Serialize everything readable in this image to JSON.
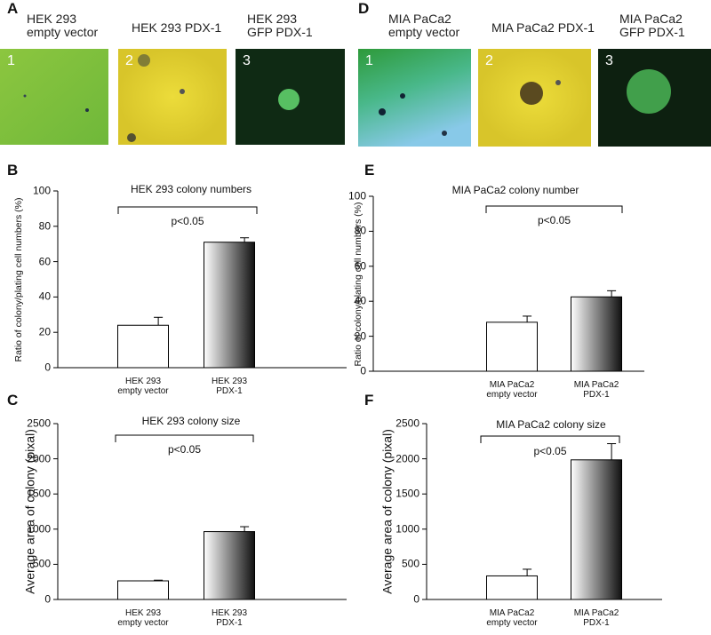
{
  "images_left": {
    "letter": "A",
    "panels": [
      {
        "label": "HEK 293\nempty vector",
        "number": 1
      },
      {
        "label": "HEK 293 PDX-1",
        "number": 2
      },
      {
        "label": "HEK 293\nGFP PDX-1",
        "number": 3
      }
    ]
  },
  "images_right": {
    "letter": "D",
    "panels": [
      {
        "label": "MIA PaCa2\nempty vector",
        "number": 1
      },
      {
        "label": "MIA PaCa2 PDX-1",
        "number": 2
      },
      {
        "label": "MIA PaCa2\nGFP PDX-1",
        "number": 3
      }
    ]
  },
  "chart_data": [
    {
      "letter": "B",
      "type": "bar",
      "title": "HEK 293 colony numbers",
      "y_label": "Ratio of colony/plating cell numbers (%)",
      "categories": [
        "HEK 293\nempty vector",
        "HEK 293\nPDX-1"
      ],
      "values": [
        24,
        71
      ],
      "errors": [
        4.5,
        2.5
      ],
      "bar_fill": [
        "plain",
        "gradient"
      ],
      "annotation": "p<0.05",
      "ylim": [
        0,
        100
      ],
      "yticks": [
        0,
        20,
        40,
        60,
        80,
        100
      ]
    },
    {
      "letter": "E",
      "type": "bar",
      "title": "MIA PaCa2 colony number",
      "y_label": "Ratio of colony/plating cell numbers (%)",
      "categories": [
        "MIA PaCa2\nempty vector",
        "MIA PaCa2\nPDX-1"
      ],
      "values": [
        28,
        42.5
      ],
      "errors": [
        3.5,
        3.5
      ],
      "bar_fill": [
        "plain",
        "gradient"
      ],
      "annotation": "p<0.05",
      "ylim": [
        0,
        100
      ],
      "yticks": [
        0,
        20,
        40,
        60,
        80,
        100
      ]
    },
    {
      "letter": "C",
      "type": "bar",
      "title": "HEK 293 colony size",
      "y_label": "Average area of colony (pixal)",
      "categories": [
        "HEK 293\nempty vector",
        "HEK 293\nPDX-1"
      ],
      "values": [
        265,
        965
      ],
      "errors": [
        10,
        70
      ],
      "bar_fill": [
        "plain",
        "gradient"
      ],
      "annotation": "p<0.05",
      "ylim": [
        0,
        2500
      ],
      "yticks": [
        0,
        500,
        1000,
        1500,
        2000,
        2500
      ]
    },
    {
      "letter": "F",
      "type": "bar",
      "title": "MIA PaCa2 colony size",
      "y_label": "Average area of colony (pixal)",
      "categories": [
        "MIA PaCa2\nempty vector",
        "MIA PaCa2\nPDX-1"
      ],
      "values": [
        335,
        1985
      ],
      "errors": [
        95,
        230
      ],
      "bar_fill": [
        "plain",
        "gradient"
      ],
      "annotation": "p<0.05",
      "ylim": [
        0,
        2500
      ],
      "yticks": [
        0,
        500,
        1000,
        1500,
        2000,
        2500
      ]
    }
  ]
}
